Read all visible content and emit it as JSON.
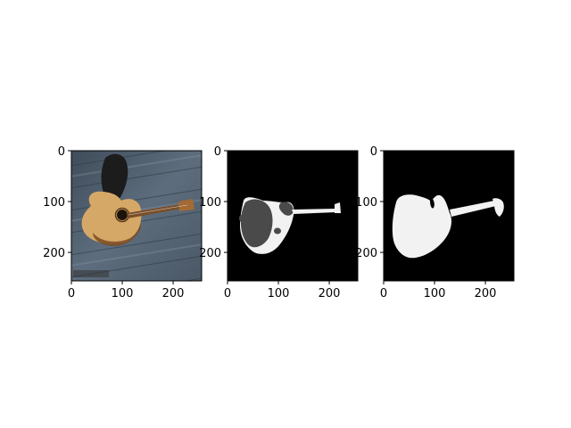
{
  "chart_data": [
    {
      "type": "image",
      "content": "photo",
      "description_icon": "guitar-photo-icon",
      "xlim": [
        0,
        256
      ],
      "ylim": [
        256,
        0
      ],
      "xticks": [
        0,
        100,
        200
      ],
      "yticks": [
        0,
        100,
        200
      ],
      "xticklabels": [
        "0",
        "100",
        "200"
      ],
      "yticklabels": [
        "0",
        "100",
        "200"
      ]
    },
    {
      "type": "image",
      "content": "predicted-mask",
      "description_icon": "mask-icon",
      "xlim": [
        0,
        256
      ],
      "ylim": [
        256,
        0
      ],
      "xticks": [
        0,
        100,
        200
      ],
      "yticks": [
        0,
        100,
        200
      ],
      "xticklabels": [
        "0",
        "100",
        "200"
      ],
      "yticklabels": [
        "0",
        "100",
        "200"
      ]
    },
    {
      "type": "image",
      "content": "ground-truth-mask",
      "description_icon": "mask-icon",
      "xlim": [
        0,
        256
      ],
      "ylim": [
        256,
        0
      ],
      "xticks": [
        0,
        100,
        200
      ],
      "yticks": [
        0,
        100,
        200
      ],
      "xticklabels": [
        "0",
        "100",
        "200"
      ],
      "yticklabels": [
        "0",
        "100",
        "200"
      ]
    }
  ],
  "colors": {
    "background": "#ffffff",
    "mask_bg": "#000000",
    "mask_white": "#f2f2f2",
    "mask_gray": "#4a4a4a",
    "floor": "#4f5f6e",
    "guitar_body": "#d6a867",
    "guitar_neck": "#8a5a2f"
  }
}
